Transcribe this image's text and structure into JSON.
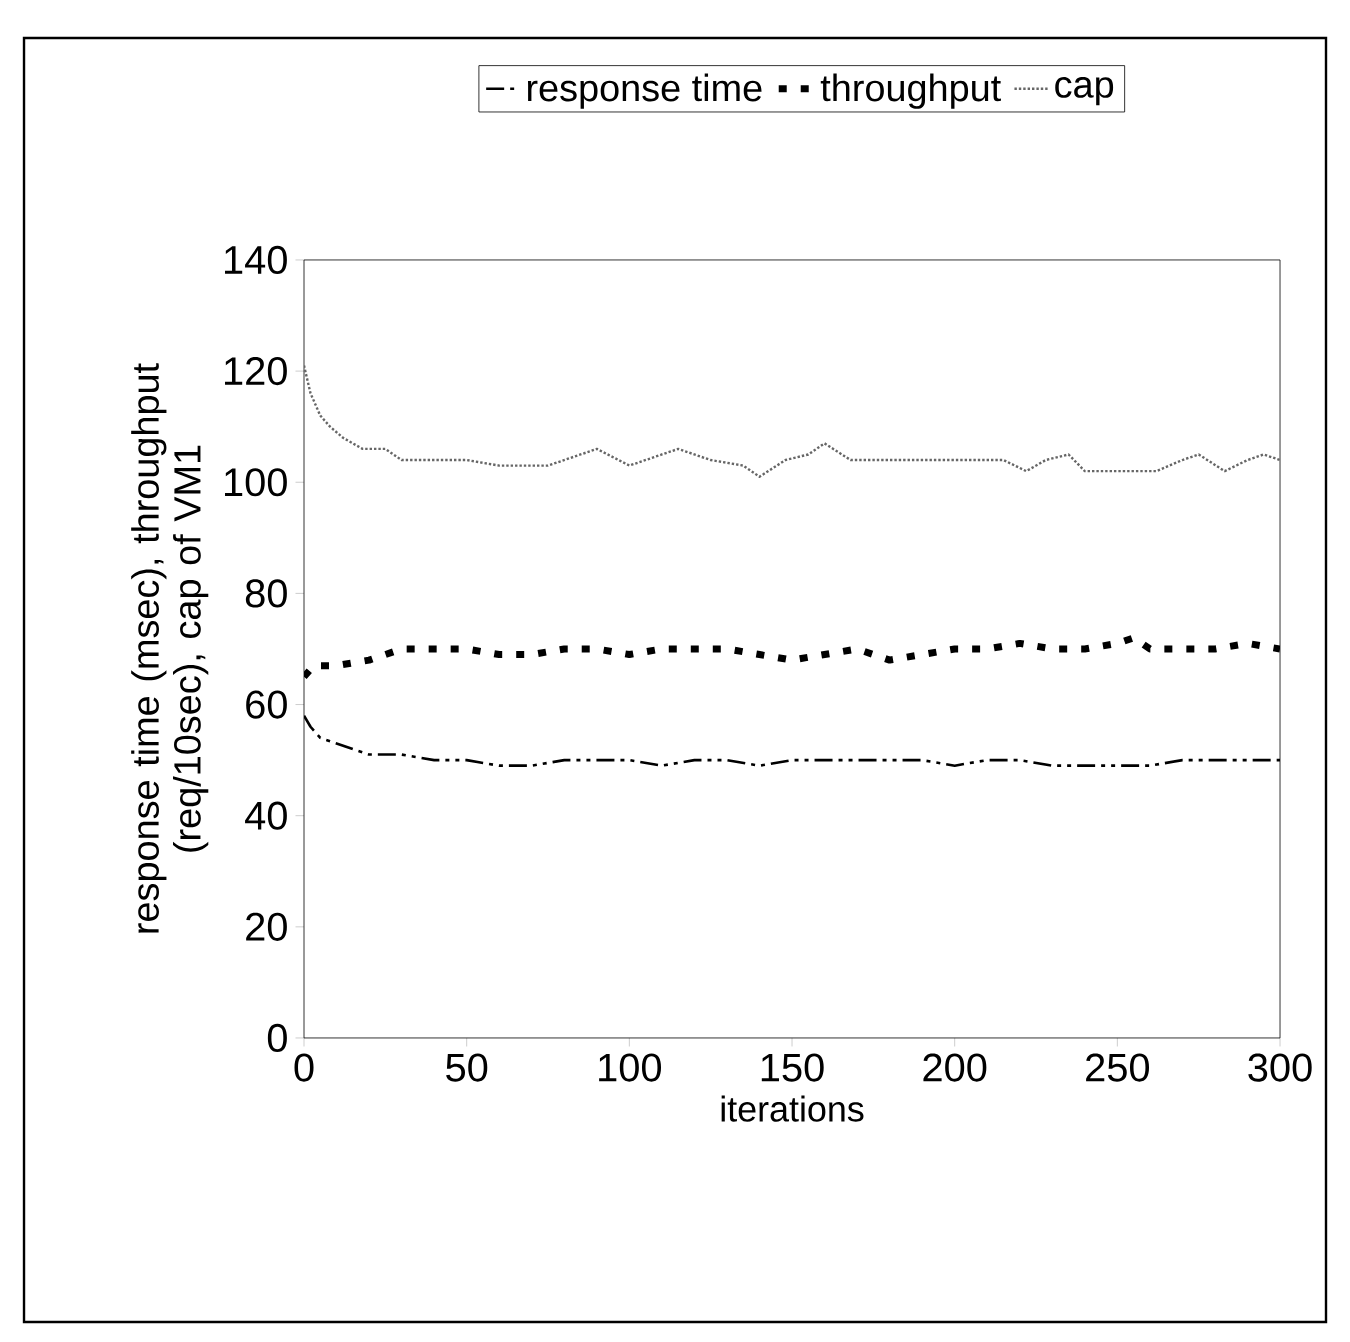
{
  "chart_data": {
    "type": "line",
    "xlabel": "iterations",
    "ylabel": "response time (msec), throughput (req/10sec), cap of VM1",
    "xlim": [
      0,
      300
    ],
    "ylim": [
      0,
      140
    ],
    "xticks": [
      0,
      50,
      100,
      150,
      200,
      250,
      300
    ],
    "yticks": [
      0,
      20,
      40,
      60,
      80,
      100,
      120,
      140
    ],
    "grid": false,
    "legend": "top",
    "marker": "none",
    "series": [
      {
        "name": "response time",
        "color": "#000000",
        "line_style": "dashed",
        "x": [
          0,
          2,
          5,
          10,
          20,
          30,
          40,
          50,
          60,
          70,
          80,
          90,
          100,
          110,
          120,
          130,
          140,
          150,
          160,
          170,
          180,
          190,
          200,
          210,
          220,
          230,
          240,
          250,
          260,
          270,
          280,
          290,
          300
        ],
        "values": [
          58,
          56,
          54,
          53,
          51,
          51,
          50,
          50,
          49,
          49,
          50,
          50,
          50,
          49,
          50,
          50,
          49,
          50,
          50,
          50,
          50,
          50,
          49,
          50,
          50,
          49,
          49,
          49,
          49,
          50,
          50,
          50,
          50
        ]
      },
      {
        "name": "throughput",
        "color": "#000000",
        "line_style": "dotted",
        "x": [
          0,
          3,
          10,
          20,
          30,
          40,
          50,
          60,
          70,
          80,
          90,
          100,
          110,
          120,
          130,
          140,
          150,
          160,
          170,
          180,
          190,
          200,
          210,
          220,
          230,
          240,
          250,
          255,
          260,
          270,
          280,
          290,
          300
        ],
        "values": [
          65,
          67,
          67,
          68,
          70,
          70,
          70,
          69,
          69,
          70,
          70,
          69,
          70,
          70,
          70,
          69,
          68,
          69,
          70,
          68,
          69,
          70,
          70,
          71,
          70,
          70,
          71,
          72,
          70,
          70,
          70,
          71,
          70
        ]
      },
      {
        "name": "cap",
        "color": "#666666",
        "line_style": "dotted",
        "x": [
          0,
          2,
          5,
          8,
          12,
          18,
          25,
          30,
          40,
          50,
          60,
          75,
          85,
          90,
          100,
          110,
          115,
          125,
          135,
          140,
          148,
          155,
          160,
          168,
          180,
          200,
          215,
          222,
          228,
          235,
          240,
          250,
          262,
          270,
          275,
          283,
          290,
          295,
          300
        ],
        "values": [
          121,
          116,
          112,
          110,
          108,
          106,
          106,
          104,
          104,
          104,
          103,
          103,
          105,
          106,
          103,
          105,
          106,
          104,
          103,
          101,
          104,
          105,
          107,
          104,
          104,
          104,
          104,
          102,
          104,
          105,
          102,
          102,
          102,
          104,
          105,
          102,
          104,
          105,
          104
        ]
      }
    ]
  }
}
